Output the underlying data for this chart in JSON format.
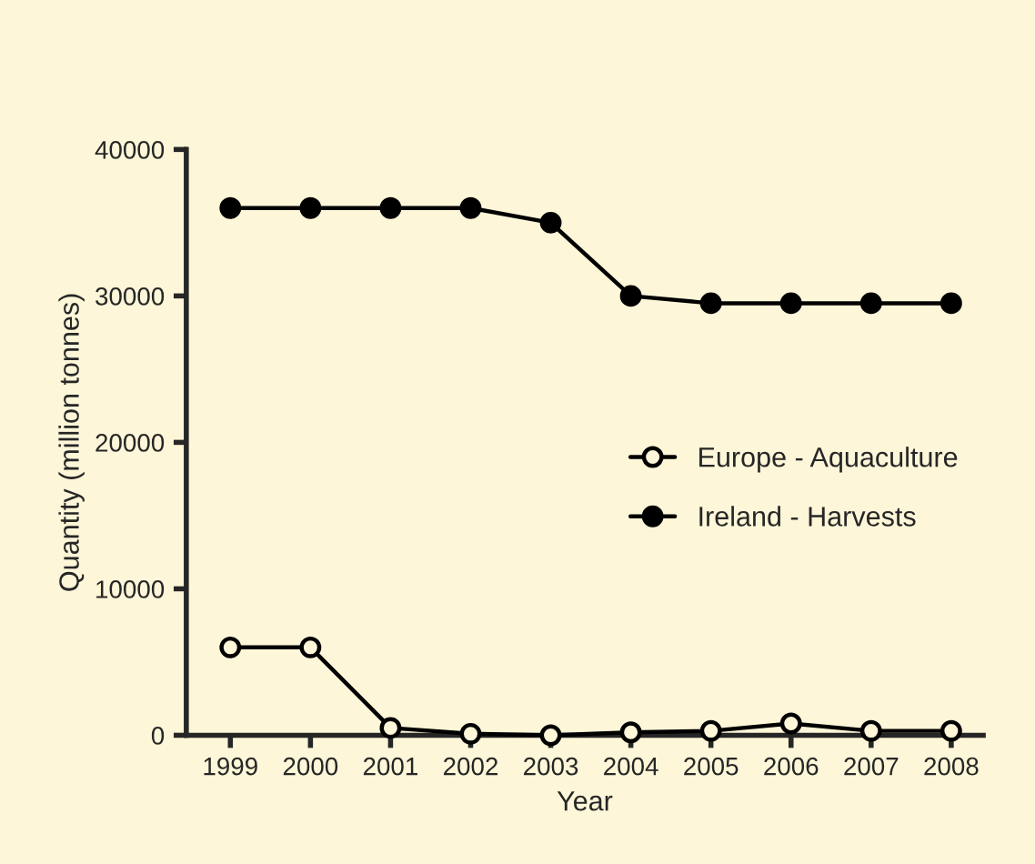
{
  "chart_data": {
    "type": "line",
    "xlabel": "Year",
    "ylabel": "Quantity (million tonnes)",
    "categories": [
      "1999",
      "2000",
      "2001",
      "2002",
      "2003",
      "2004",
      "2005",
      "2006",
      "2007",
      "2008"
    ],
    "series": [
      {
        "name": "Europe - Aquaculture",
        "color": "#000000",
        "marker": "open circle",
        "values": [
          6000,
          6000,
          500,
          100,
          0,
          200,
          300,
          800,
          300,
          300
        ]
      },
      {
        "name": "Ireland - Harvests",
        "color": "#000000",
        "marker": "circle",
        "values": [
          36000,
          36000,
          36000,
          36000,
          35000,
          30000,
          29500,
          29500,
          29500,
          29500
        ]
      }
    ],
    "ylim": [
      0,
      40000
    ],
    "yticks": [
      0,
      10000,
      20000,
      30000,
      40000
    ],
    "grid": false,
    "legend": "right"
  }
}
